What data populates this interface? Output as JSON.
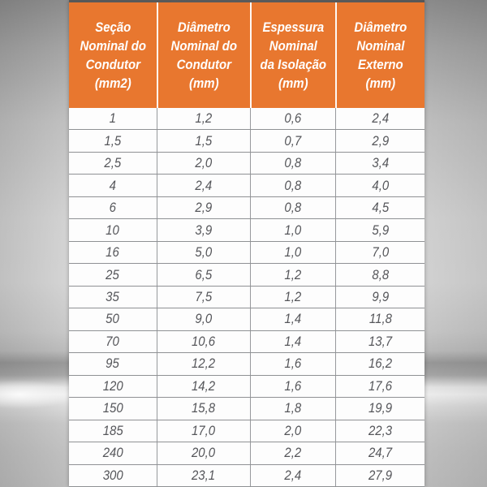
{
  "theme": {
    "header_bg": "#E8772F",
    "header_text_color": "#FFFFFF",
    "row_bg": "#FDFDFD",
    "grid_line_color": "#8F9194",
    "cell_text_color": "#55565A",
    "backdrop_base": "#CFCFCF"
  },
  "chart_data": {
    "type": "table",
    "columns": [
      {
        "id": "secao-nominal-condutor",
        "label": "Seção Nominal do Condutor (mm2)",
        "lines": [
          "Seção",
          "Nominal do",
          "Condutor",
          "(mm2)"
        ]
      },
      {
        "id": "diametro-nominal-condutor",
        "label": "Diâmetro Nominal do Condutor (mm)",
        "lines": [
          "Diâmetro",
          "Nominal do",
          "Condutor",
          "(mm)"
        ]
      },
      {
        "id": "espessura-nominal-isolacao",
        "label": "Espessura Nominal da Isolação (mm)",
        "lines": [
          "Espessura",
          "Nominal",
          "da Isolação",
          "(mm)"
        ]
      },
      {
        "id": "diametro-nominal-externo",
        "label": "Diâmetro Nominal Externo (mm)",
        "lines": [
          "Diâmetro",
          "Nominal",
          "Externo",
          "(mm)"
        ]
      }
    ],
    "rows": [
      [
        "1",
        "1,2",
        "0,6",
        "2,4"
      ],
      [
        "1,5",
        "1,5",
        "0,7",
        "2,9"
      ],
      [
        "2,5",
        "2,0",
        "0,8",
        "3,4"
      ],
      [
        "4",
        "2,4",
        "0,8",
        "4,0"
      ],
      [
        "6",
        "2,9",
        "0,8",
        "4,5"
      ],
      [
        "10",
        "3,9",
        "1,0",
        "5,9"
      ],
      [
        "16",
        "5,0",
        "1,0",
        "7,0"
      ],
      [
        "25",
        "6,5",
        "1,2",
        "8,8"
      ],
      [
        "35",
        "7,5",
        "1,2",
        "9,9"
      ],
      [
        "50",
        "9,0",
        "1,4",
        "11,8"
      ],
      [
        "70",
        "10,6",
        "1,4",
        "13,7"
      ],
      [
        "95",
        "12,2",
        "1,6",
        "16,2"
      ],
      [
        "120",
        "14,2",
        "1,6",
        "17,6"
      ],
      [
        "150",
        "15,8",
        "1,8",
        "19,9"
      ],
      [
        "185",
        "17,0",
        "2,0",
        "22,3"
      ],
      [
        "240",
        "20,0",
        "2,2",
        "24,7"
      ],
      [
        "300",
        "23,1",
        "2,4",
        "27,9"
      ]
    ]
  }
}
